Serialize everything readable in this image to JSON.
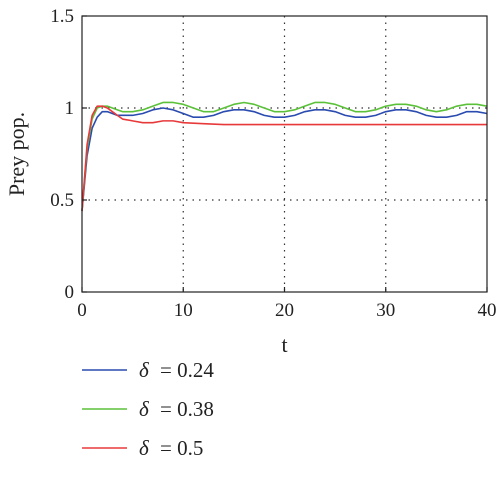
{
  "chart_data": {
    "type": "line",
    "xlabel": "t",
    "ylabel": "Prey pop.",
    "xlim": [
      0,
      40
    ],
    "ylim": [
      0,
      1.5
    ],
    "xticks": [
      0,
      10,
      20,
      30,
      40
    ],
    "yticks": [
      0,
      0.5,
      1,
      1.5
    ],
    "xtick_labels": [
      "0",
      "10",
      "20",
      "30",
      "40"
    ],
    "ytick_labels": [
      "0",
      "0.5",
      "1",
      "1.5"
    ],
    "grid": "dotted",
    "legend_position": "below",
    "series": [
      {
        "name": "δ = 0.24",
        "legend_label": "= 0.24",
        "color": "#2a4bb0",
        "x": [
          0,
          0.5,
          1,
          1.5,
          2,
          2.5,
          3,
          3.5,
          4,
          5,
          6,
          7,
          8,
          9,
          10,
          11,
          12,
          13,
          14,
          15,
          16,
          17,
          18,
          19,
          20,
          21,
          22,
          23,
          24,
          25,
          26,
          27,
          28,
          29,
          30,
          31,
          32,
          33,
          34,
          35,
          36,
          37,
          38,
          39,
          40
        ],
        "y": [
          0.44,
          0.74,
          0.89,
          0.95,
          0.98,
          0.98,
          0.97,
          0.96,
          0.96,
          0.96,
          0.97,
          0.99,
          1.0,
          0.99,
          0.97,
          0.95,
          0.95,
          0.96,
          0.98,
          0.99,
          0.99,
          0.98,
          0.96,
          0.95,
          0.95,
          0.96,
          0.98,
          0.99,
          0.99,
          0.98,
          0.96,
          0.95,
          0.95,
          0.96,
          0.98,
          0.99,
          0.99,
          0.98,
          0.96,
          0.95,
          0.95,
          0.96,
          0.98,
          0.98,
          0.97
        ]
      },
      {
        "name": "δ = 0.38",
        "legend_label": "= 0.38",
        "color": "#5cc13a",
        "x": [
          0,
          0.5,
          1,
          1.5,
          2,
          2.5,
          3,
          3.5,
          4,
          5,
          6,
          7,
          8,
          9,
          10,
          11,
          12,
          13,
          14,
          15,
          16,
          17,
          18,
          19,
          20,
          21,
          22,
          23,
          24,
          25,
          26,
          27,
          28,
          29,
          30,
          31,
          32,
          33,
          34,
          35,
          36,
          37,
          38,
          39,
          40
        ],
        "y": [
          0.44,
          0.78,
          0.94,
          1.0,
          1.01,
          1.01,
          1.0,
          0.99,
          0.98,
          0.98,
          0.99,
          1.01,
          1.03,
          1.03,
          1.02,
          1.0,
          0.98,
          0.98,
          1.0,
          1.02,
          1.03,
          1.02,
          1.0,
          0.98,
          0.98,
          0.99,
          1.01,
          1.03,
          1.03,
          1.02,
          1.0,
          0.98,
          0.98,
          0.99,
          1.01,
          1.02,
          1.02,
          1.01,
          0.99,
          0.98,
          0.99,
          1.01,
          1.02,
          1.02,
          1.01
        ]
      },
      {
        "name": "δ = 0.5",
        "legend_label": "= 0.5",
        "color": "#e8393a",
        "x": [
          0,
          0.5,
          1,
          1.5,
          2,
          2.5,
          3,
          3.5,
          4,
          5,
          6,
          7,
          8,
          9,
          10,
          12,
          14,
          16,
          18,
          20,
          25,
          30,
          35,
          40
        ],
        "y": [
          0.44,
          0.8,
          0.96,
          1.01,
          1.01,
          1.0,
          0.98,
          0.96,
          0.94,
          0.93,
          0.92,
          0.92,
          0.93,
          0.93,
          0.92,
          0.915,
          0.91,
          0.91,
          0.91,
          0.91,
          0.91,
          0.91,
          0.91,
          0.91
        ]
      }
    ]
  }
}
